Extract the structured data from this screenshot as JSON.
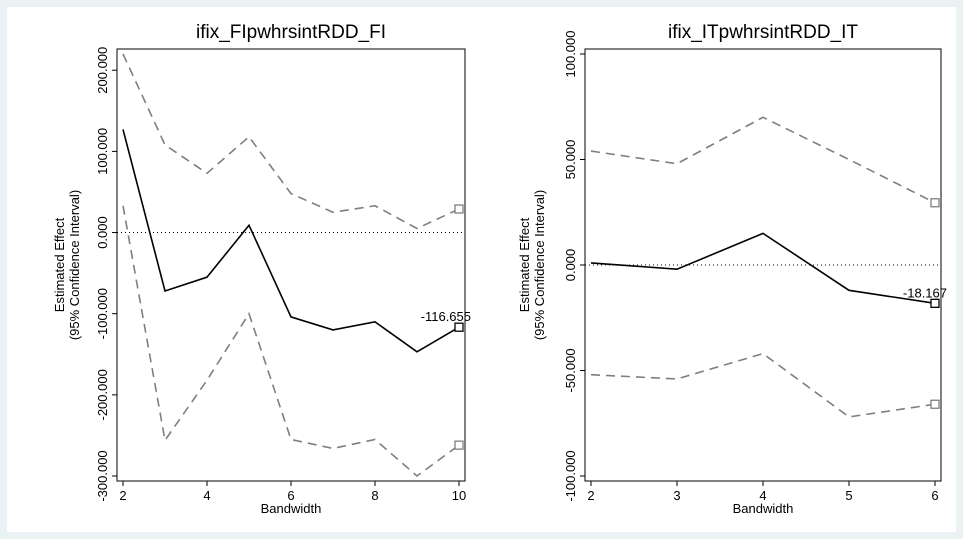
{
  "chart_data": [
    {
      "type": "line",
      "title": "ifix_FIpwhrsintRDD_FI",
      "xlabel": "Bandwidth",
      "ylabel": [
        "Estimated Effect",
        "(95% Confidence Interval)"
      ],
      "xlim": [
        2,
        10
      ],
      "ylim": [
        -300,
        220
      ],
      "x_ticks": [
        2,
        4,
        6,
        8,
        10
      ],
      "y_ticks": [
        -300,
        -200,
        -100,
        0,
        100,
        200
      ],
      "y_tick_labels": [
        "-300.000",
        "-200.000",
        "-100.000",
        "0.000",
        "100.000",
        "200.000"
      ],
      "x": [
        2,
        3,
        4,
        5,
        6,
        7,
        8,
        9,
        10
      ],
      "series": [
        {
          "role": "upper-ci",
          "style": "dashed",
          "color": "#7f7f7f",
          "values": [
            220,
            108,
            73,
            118,
            48,
            25,
            33,
            5,
            29
          ]
        },
        {
          "role": "estimate",
          "style": "solid",
          "color": "#000000",
          "values": [
            127,
            -72,
            -55,
            9,
            -104,
            -120,
            -110,
            -147,
            -116.655
          ]
        },
        {
          "role": "lower-ci",
          "style": "dashed",
          "color": "#7f7f7f",
          "values": [
            33,
            -256,
            -182,
            -100,
            -255,
            -266,
            -255,
            -300,
            -262
          ]
        }
      ],
      "reference_line": {
        "y": 0,
        "style": "dotted"
      },
      "annotation": "-116.655"
    },
    {
      "type": "line",
      "title": "ifix_ITpwhrsintRDD_IT",
      "xlabel": "Bandwidth",
      "ylabel": [
        "Estimated Effect",
        "(95% Confidence Interval)"
      ],
      "xlim": [
        2,
        6
      ],
      "ylim": [
        -100,
        100
      ],
      "x_ticks": [
        2,
        3,
        4,
        5,
        6
      ],
      "y_ticks": [
        -100,
        -50,
        0,
        50,
        100
      ],
      "y_tick_labels": [
        "-100.000",
        "-50.000",
        "0.000",
        "50.000",
        "100.000"
      ],
      "x": [
        2,
        3,
        4,
        5,
        6
      ],
      "series": [
        {
          "role": "upper-ci",
          "style": "dashed",
          "color": "#7f7f7f",
          "values": [
            54,
            48,
            70,
            50,
            29.5
          ]
        },
        {
          "role": "estimate",
          "style": "solid",
          "color": "#000000",
          "values": [
            1,
            -2,
            15,
            -12,
            -18.167
          ]
        },
        {
          "role": "lower-ci",
          "style": "dashed",
          "color": "#7f7f7f",
          "values": [
            -52,
            -54,
            -42,
            -72,
            -66
          ]
        }
      ],
      "reference_line": {
        "y": 0,
        "style": "dotted"
      },
      "annotation": "-18.167"
    }
  ]
}
